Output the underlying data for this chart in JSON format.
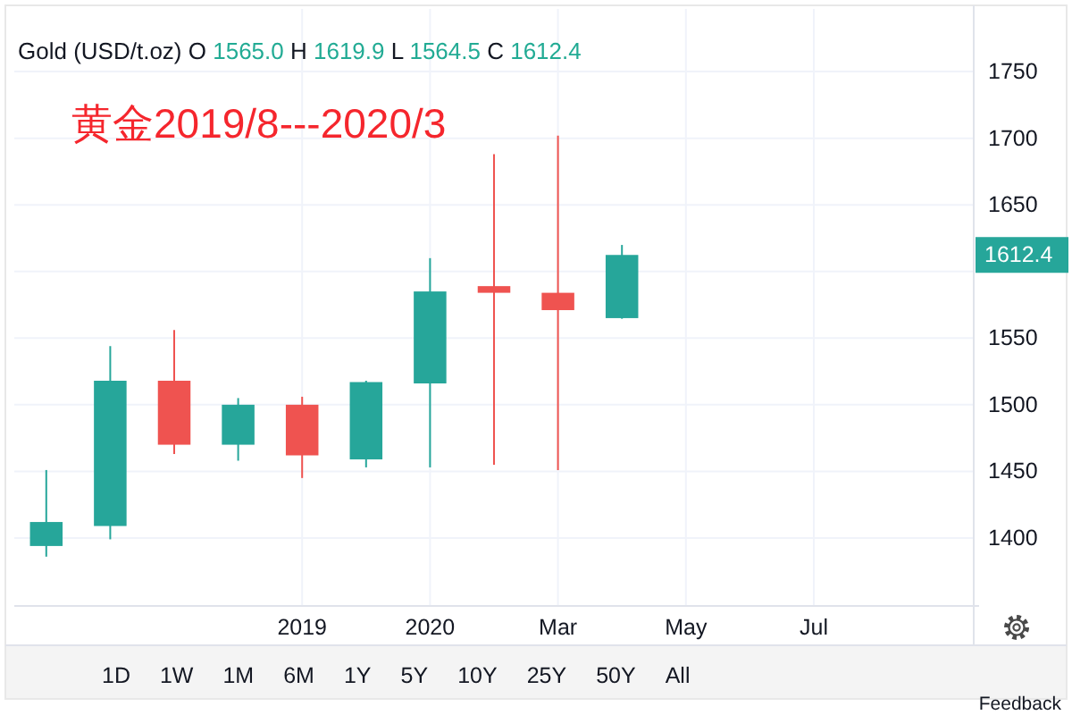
{
  "chart_data": {
    "type": "candlestick",
    "title": "黄金2019/8---2020/3",
    "subtitle": "Gold (USD/t.oz) O 1565.0 H 1619.9 L 1564.5 C 1612.4",
    "categories": [
      null,
      null,
      null,
      null,
      "2019",
      null,
      "2020",
      null,
      "Mar",
      null,
      "May",
      null,
      "Jul",
      null,
      null
    ],
    "ohlc": [
      [
        1394,
        1451,
        1386,
        1412
      ],
      [
        1409,
        1544,
        1399,
        1518
      ],
      [
        1518,
        1556,
        1463,
        1470
      ],
      [
        1470,
        1505,
        1458,
        1500
      ],
      [
        1500,
        1506,
        1445,
        1462
      ],
      [
        1459,
        1518,
        1453,
        1517
      ],
      [
        1516,
        1610,
        1453,
        1585
      ],
      [
        1589,
        1688,
        1455,
        1584
      ],
      [
        1584,
        1702,
        1451,
        1571
      ],
      [
        1565.0,
        1619.9,
        1564.5,
        1612.4
      ],
      null,
      null,
      null,
      null,
      null
    ],
    "colors": [
      "#26a69a",
      "#26a69a",
      "#ef5350",
      "#26a69a",
      "#ef5350",
      "#26a69a",
      "#26a69a",
      "#ef5350",
      "#ef5350",
      "#26a69a",
      null,
      null,
      null,
      null,
      null
    ],
    "ylim": [
      1349,
      1797
    ],
    "yticks": [
      1400,
      1450,
      1500,
      1550,
      {
        "value": 1600,
        "label": null
      },
      1650,
      1700,
      1750
    ],
    "grid": true,
    "annotations": [
      "1612.4",
      "1D",
      "1W",
      "1M",
      "6M",
      "1Y",
      "5Y",
      "10Y",
      "25Y",
      "50Y",
      "All",
      "Feedback"
    ]
  }
}
